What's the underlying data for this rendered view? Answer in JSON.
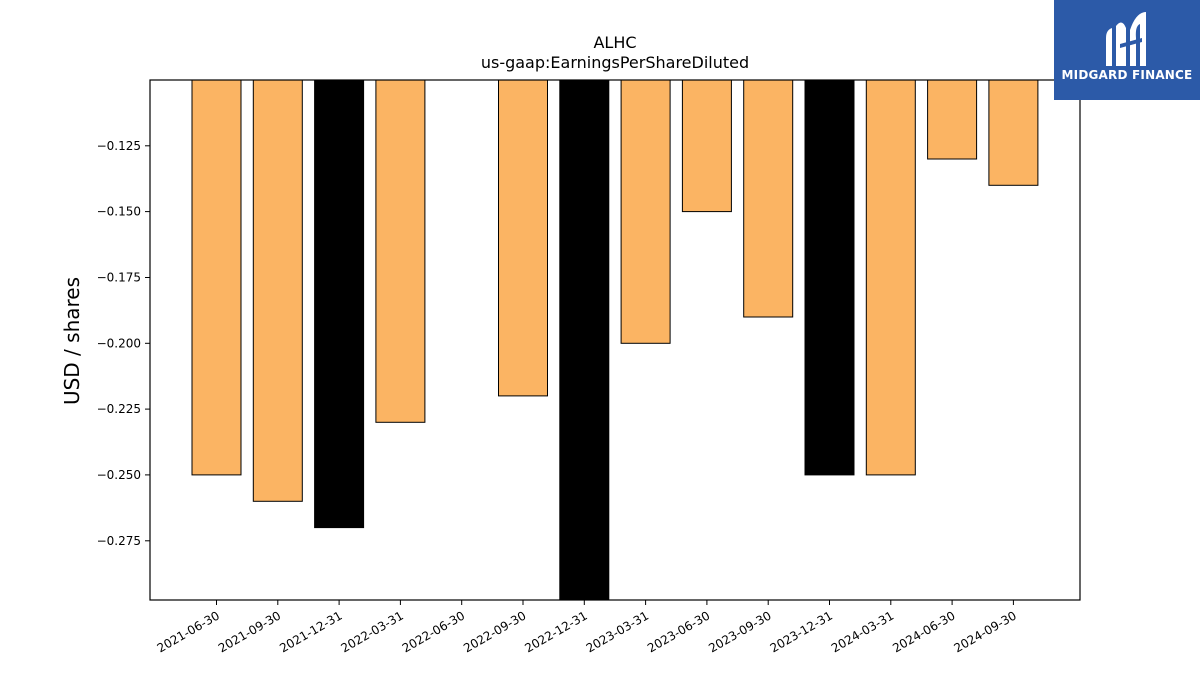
{
  "chart_data": {
    "type": "bar",
    "title": "ALHC",
    "subtitle": "us-gaap:EarningsPerShareDiluted",
    "ylabel": "USD / shares",
    "xlabel": "",
    "ylim": [
      -0.2975,
      -0.1
    ],
    "yticks": [
      -0.125,
      -0.15,
      -0.175,
      -0.2,
      -0.225,
      -0.25,
      -0.275
    ],
    "ytick_labels": [
      "−0.125",
      "−0.150",
      "−0.175",
      "−0.200",
      "−0.225",
      "−0.250",
      "−0.275"
    ],
    "categories": [
      "2021-06-30",
      "2021-09-30",
      "2021-12-31",
      "2022-03-31",
      "2022-06-30",
      "2022-09-30",
      "2022-12-31",
      "2023-03-31",
      "2023-06-30",
      "2023-09-30",
      "2023-12-31",
      "2024-03-31",
      "2024-06-30",
      "2024-09-30"
    ],
    "values": [
      -0.25,
      -0.26,
      -0.27,
      -0.23,
      null,
      -0.22,
      -0.31,
      -0.2,
      -0.15,
      -0.19,
      -0.25,
      -0.25,
      -0.13,
      -0.14
    ],
    "bar_colors": [
      "#fbb463",
      "#fbb463",
      "#000000",
      "#fbb463",
      "#fbb463",
      "#fbb463",
      "#000000",
      "#fbb463",
      "#fbb463",
      "#fbb463",
      "#000000",
      "#fbb463",
      "#fbb463",
      "#fbb463"
    ],
    "grid": false
  },
  "logo": {
    "text": "MIDGARD FINANCE",
    "background": "#2c5aa8"
  }
}
